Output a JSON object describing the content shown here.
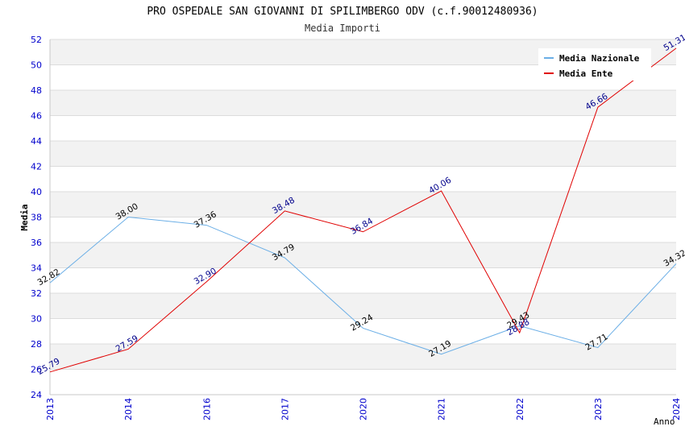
{
  "chart_data": {
    "type": "line",
    "title": "PRO OSPEDALE SAN GIOVANNI DI SPILIMBERGO ODV (c.f.90012480936)",
    "subtitle": "Media Importi",
    "xlabel": "Anno",
    "ylabel": "Media",
    "categories": [
      "2013",
      "2014",
      "2016",
      "2017",
      "2020",
      "2021",
      "2022",
      "2023",
      "2024"
    ],
    "ylim": [
      24,
      52
    ],
    "yticks": [
      "24",
      "26",
      "28",
      "30",
      "32",
      "34",
      "36",
      "38",
      "40",
      "42",
      "44",
      "46",
      "48",
      "50",
      "52"
    ],
    "grid": true,
    "legend_position": "top-right",
    "series": [
      {
        "name": "Media Nazionale",
        "color": "#6aaee6",
        "label_color": "#000000",
        "values": [
          32.82,
          38.0,
          37.36,
          34.79,
          29.24,
          27.19,
          29.43,
          27.71,
          34.32
        ],
        "labels": [
          "32.82",
          "38.00",
          "37.36",
          "34.79",
          "29.24",
          "27.19",
          "29.43",
          "27.71",
          "34.32"
        ]
      },
      {
        "name": "Media Ente",
        "color": "#e00000",
        "label_color": "#00008b",
        "values": [
          25.79,
          27.59,
          32.9,
          38.48,
          36.84,
          40.06,
          28.88,
          46.66,
          51.31
        ],
        "labels": [
          "25.79",
          "27.59",
          "32.90",
          "38.48",
          "36.84",
          "40.06",
          "28.88",
          "46.66",
          "51.31"
        ]
      }
    ]
  }
}
